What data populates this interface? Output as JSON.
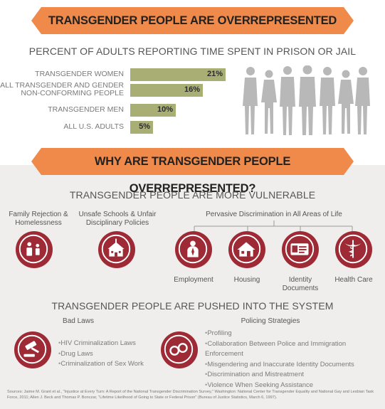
{
  "banner1": "TRANSGENDER PEOPLE ARE OVERREPRESENTED",
  "chart_title": "PERCENT OF ADULTS REPORTING TIME SPENT IN PRISON OR JAIL",
  "chart_data": {
    "type": "bar",
    "categories": [
      "TRANSGENDER WOMEN",
      "ALL TRANSGENDER AND GENDER NON-CONFORMING PEOPLE",
      "TRANSGENDER MEN",
      "ALL U.S. ADULTS"
    ],
    "categories_display": [
      [
        "TRANSGENDER WOMEN"
      ],
      [
        "ALL TRANSGENDER AND GENDER",
        "NON-CONFORMING PEOPLE"
      ],
      [
        "TRANSGENDER MEN"
      ],
      [
        "ALL U.S. ADULTS"
      ]
    ],
    "values": [
      21,
      16,
      10,
      5
    ],
    "value_labels": [
      "21%",
      "16%",
      "10%",
      "5%"
    ],
    "title": "PERCENT OF ADULTS REPORTING TIME SPENT IN PRISON OR JAIL",
    "orientation": "horizontal",
    "xlim": [
      0,
      21
    ],
    "bar_color": "#a9ae74"
  },
  "banner2": "WHY ARE TRANSGENDER PEOPLE OVERREPRESENTED?",
  "vulnerable": {
    "heading": "TRANSGENDER PEOPLE ARE MORE VULNERABLE",
    "family": [
      "Family Rejection &",
      "Homelessness"
    ],
    "schools": [
      "Unsafe Schools & Unfair",
      "Disciplinary Policies"
    ],
    "pervasive": "Pervasive Discrimination in All Areas of Life",
    "areas": [
      "Employment",
      "Housing",
      "Identity Documents",
      "Health Care"
    ]
  },
  "pushed": {
    "heading": "TRANSGENDER PEOPLE ARE PUSHED INTO THE SYSTEM",
    "bad_laws_title": "Bad Laws",
    "bad_laws": [
      "HIV Criminalization Laws",
      "Drug Laws",
      "Criminalization of Sex Work"
    ],
    "policing_title": "Policing Strategies",
    "policing": [
      "Profiling",
      "Collaboration Between Police and Immigration Enforcement",
      "Misgendering and Inaccurate Identity Documents",
      "Discrimination and Mistreatment",
      "Violence When Seeking Assistance"
    ]
  },
  "sources": "Sources: Jaime M. Grant et al., \"Injustice at Every Turn: A Report of the National Transgender Discrimination Survey,\" Washington: National Center for Transgender Equality and National Gay and Lesbian Task Force, 2011; Allen J. Beck and Thomas P. Bonczar, \"Lifetime Likelihood of Going to State or Federal Prison\" (Bureau of Justice Statistics, March 6, 1997).",
  "colors": {
    "banner": "#f08a4b",
    "icon": "#9e2a35",
    "people": "#b8b8b8",
    "background_lower": "#efeeec"
  }
}
